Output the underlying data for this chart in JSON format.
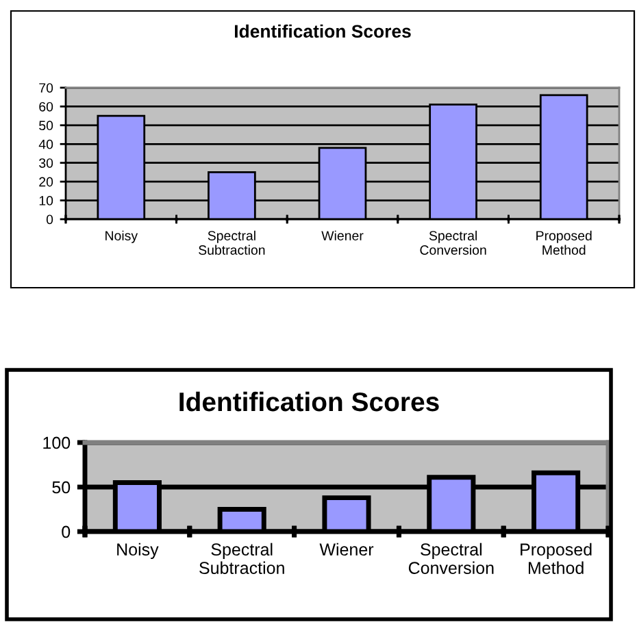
{
  "chart_data": [
    {
      "type": "bar",
      "title": "Identification Scores",
      "categories": [
        "Noisy",
        "Spectral\nSubtraction",
        "Wiener",
        "Spectral\nConversion",
        "Proposed\nMethod"
      ],
      "values": [
        55,
        25,
        38,
        61,
        66
      ],
      "color": "#9999ff",
      "ylim": [
        0,
        70
      ],
      "yticks": [
        0,
        10,
        20,
        30,
        40,
        50,
        60,
        70
      ],
      "grid": "y"
    },
    {
      "type": "bar",
      "title": "Identification Scores",
      "categories": [
        "Noisy",
        "Spectral\nSubtraction",
        "Wiener",
        "Spectral\nConversion",
        "Proposed\nMethod"
      ],
      "values": [
        55,
        25,
        38,
        61,
        66
      ],
      "color": "#9999ff",
      "ylim": [
        0,
        100
      ],
      "yticks": [
        0,
        50,
        100
      ],
      "grid": "y"
    }
  ]
}
